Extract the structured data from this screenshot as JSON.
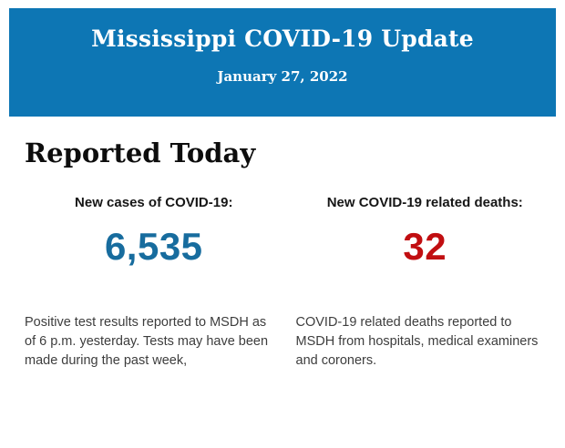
{
  "header": {
    "title": "Mississippi COVID-19 Update",
    "date": "January 27, 2022",
    "background": "#0d76b4",
    "text_color": "#ffffff"
  },
  "section": {
    "title": "Reported Today"
  },
  "stats": [
    {
      "label": "New cases of COVID-19:",
      "value": "6,535",
      "value_color": "#176c9e",
      "description": "Positive test results reported to MSDH as of 6 p.m. yesterday. Tests may have been made during the past week,"
    },
    {
      "label": "New COVID-19 related deaths:",
      "value": "32",
      "value_color": "#c10e11",
      "description": "COVID-19 related deaths reported to MSDH from hospitals, medical examiners and coroners."
    }
  ]
}
